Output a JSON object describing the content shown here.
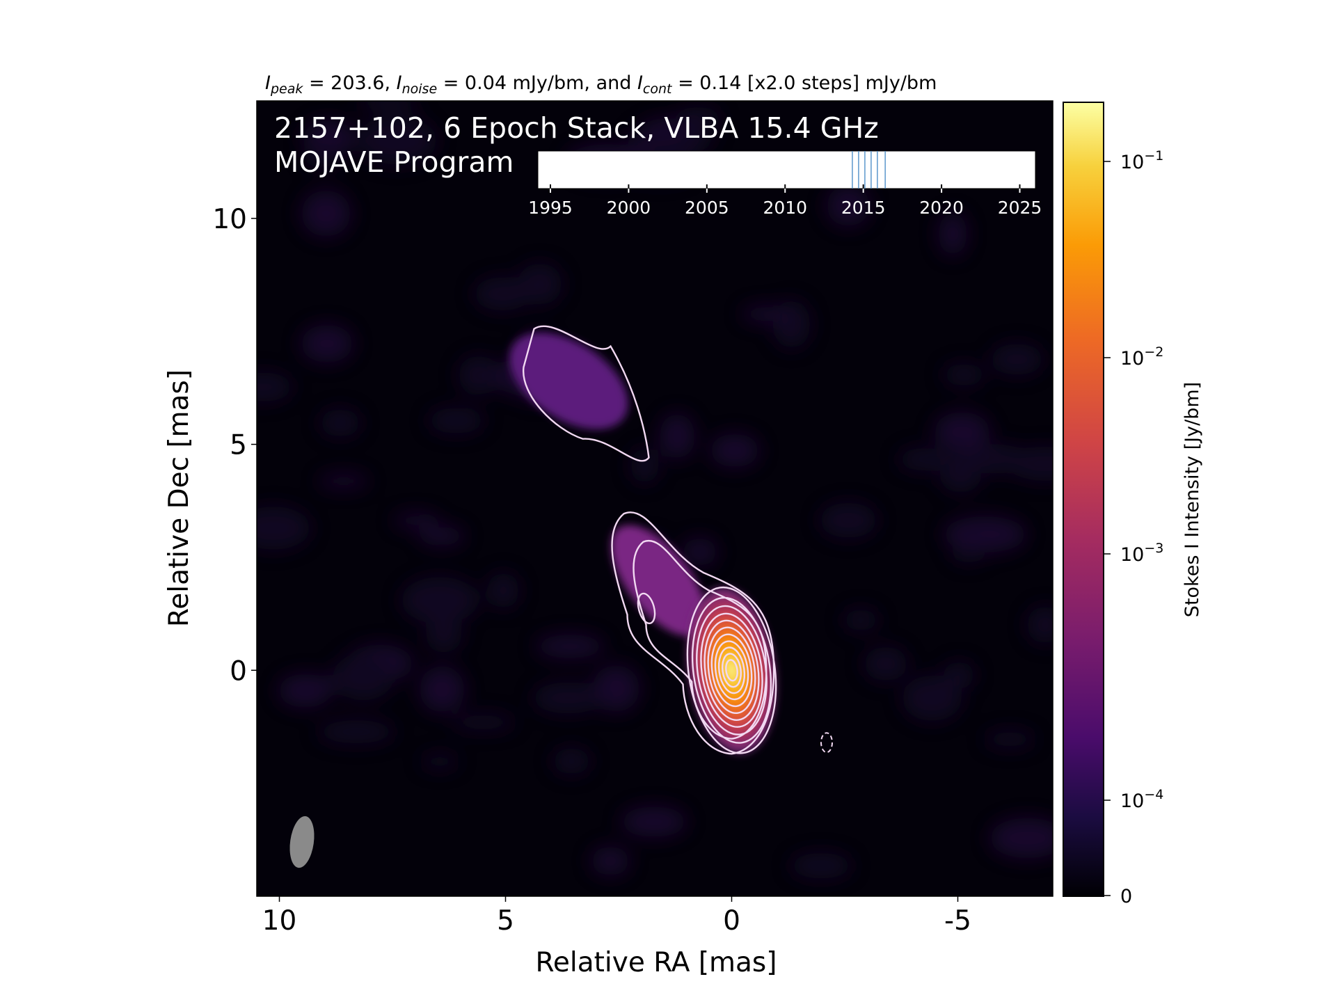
{
  "chart_data": {
    "type": "heatmap",
    "title": {
      "peak_sym": "I",
      "peak_sub": "peak",
      "peak_val": " = 203.6, ",
      "noise_sym": "I",
      "noise_sub": "noise",
      "noise_val": " = 0.04 mJy/bm, and ",
      "cont_sym": "I",
      "cont_sub": "cont",
      "cont_val": " = 0.14 [x2.0 steps] mJy/bm"
    },
    "overlay": {
      "line1": "2157+102, 6 Epoch Stack, VLBA 15.4 GHz",
      "line2": "MOJAVE Program"
    },
    "xlabel": "Relative RA [mas]",
    "ylabel": "Relative Dec [mas]",
    "xlim": [
      10.5,
      -7.1
    ],
    "ylim": [
      -5.0,
      12.6
    ],
    "xticks": [
      10,
      5,
      0,
      -5
    ],
    "xtick_labels": [
      "10",
      "5",
      "0",
      "-5"
    ],
    "yticks": [
      0,
      5,
      10
    ],
    "ytick_labels": [
      "0",
      "5",
      "10"
    ],
    "core": {
      "ra": 0.0,
      "dec": 0.0
    },
    "jet_knots": [
      {
        "ra": 1.5,
        "dec": 1.6
      },
      {
        "ra": 2.0,
        "dec": 2.6
      },
      {
        "ra": 3.6,
        "dec": 6.4
      }
    ],
    "beam": {
      "ra": 9.5,
      "dec": -3.8,
      "major_mas": 1.15,
      "minor_mas": 0.52
    },
    "colorbar": {
      "label": "Stokes I Intensity [Jy/bm]",
      "scale": "log",
      "ticks": [
        {
          "base": "10",
          "exp": "−1"
        },
        {
          "base": "10",
          "exp": "−2"
        },
        {
          "base": "10",
          "exp": "−3"
        },
        {
          "base": "10",
          "exp": "−4"
        },
        {
          "base": "",
          "exp": "",
          "plain": "0"
        }
      ],
      "colormap": "inferno"
    },
    "epoch_timeline": {
      "ticks": [
        "1995",
        "2000",
        "2005",
        "2010",
        "2015",
        "2020",
        "2025"
      ],
      "tick_values": [
        1995,
        2000,
        2005,
        2010,
        2015,
        2020,
        2025
      ],
      "range": [
        1994.2,
        2026.0
      ],
      "epochs": [
        2014.3,
        2014.7,
        2015.1,
        2015.5,
        2015.9,
        2016.4
      ],
      "epoch_color": "#4f8fc8"
    }
  }
}
